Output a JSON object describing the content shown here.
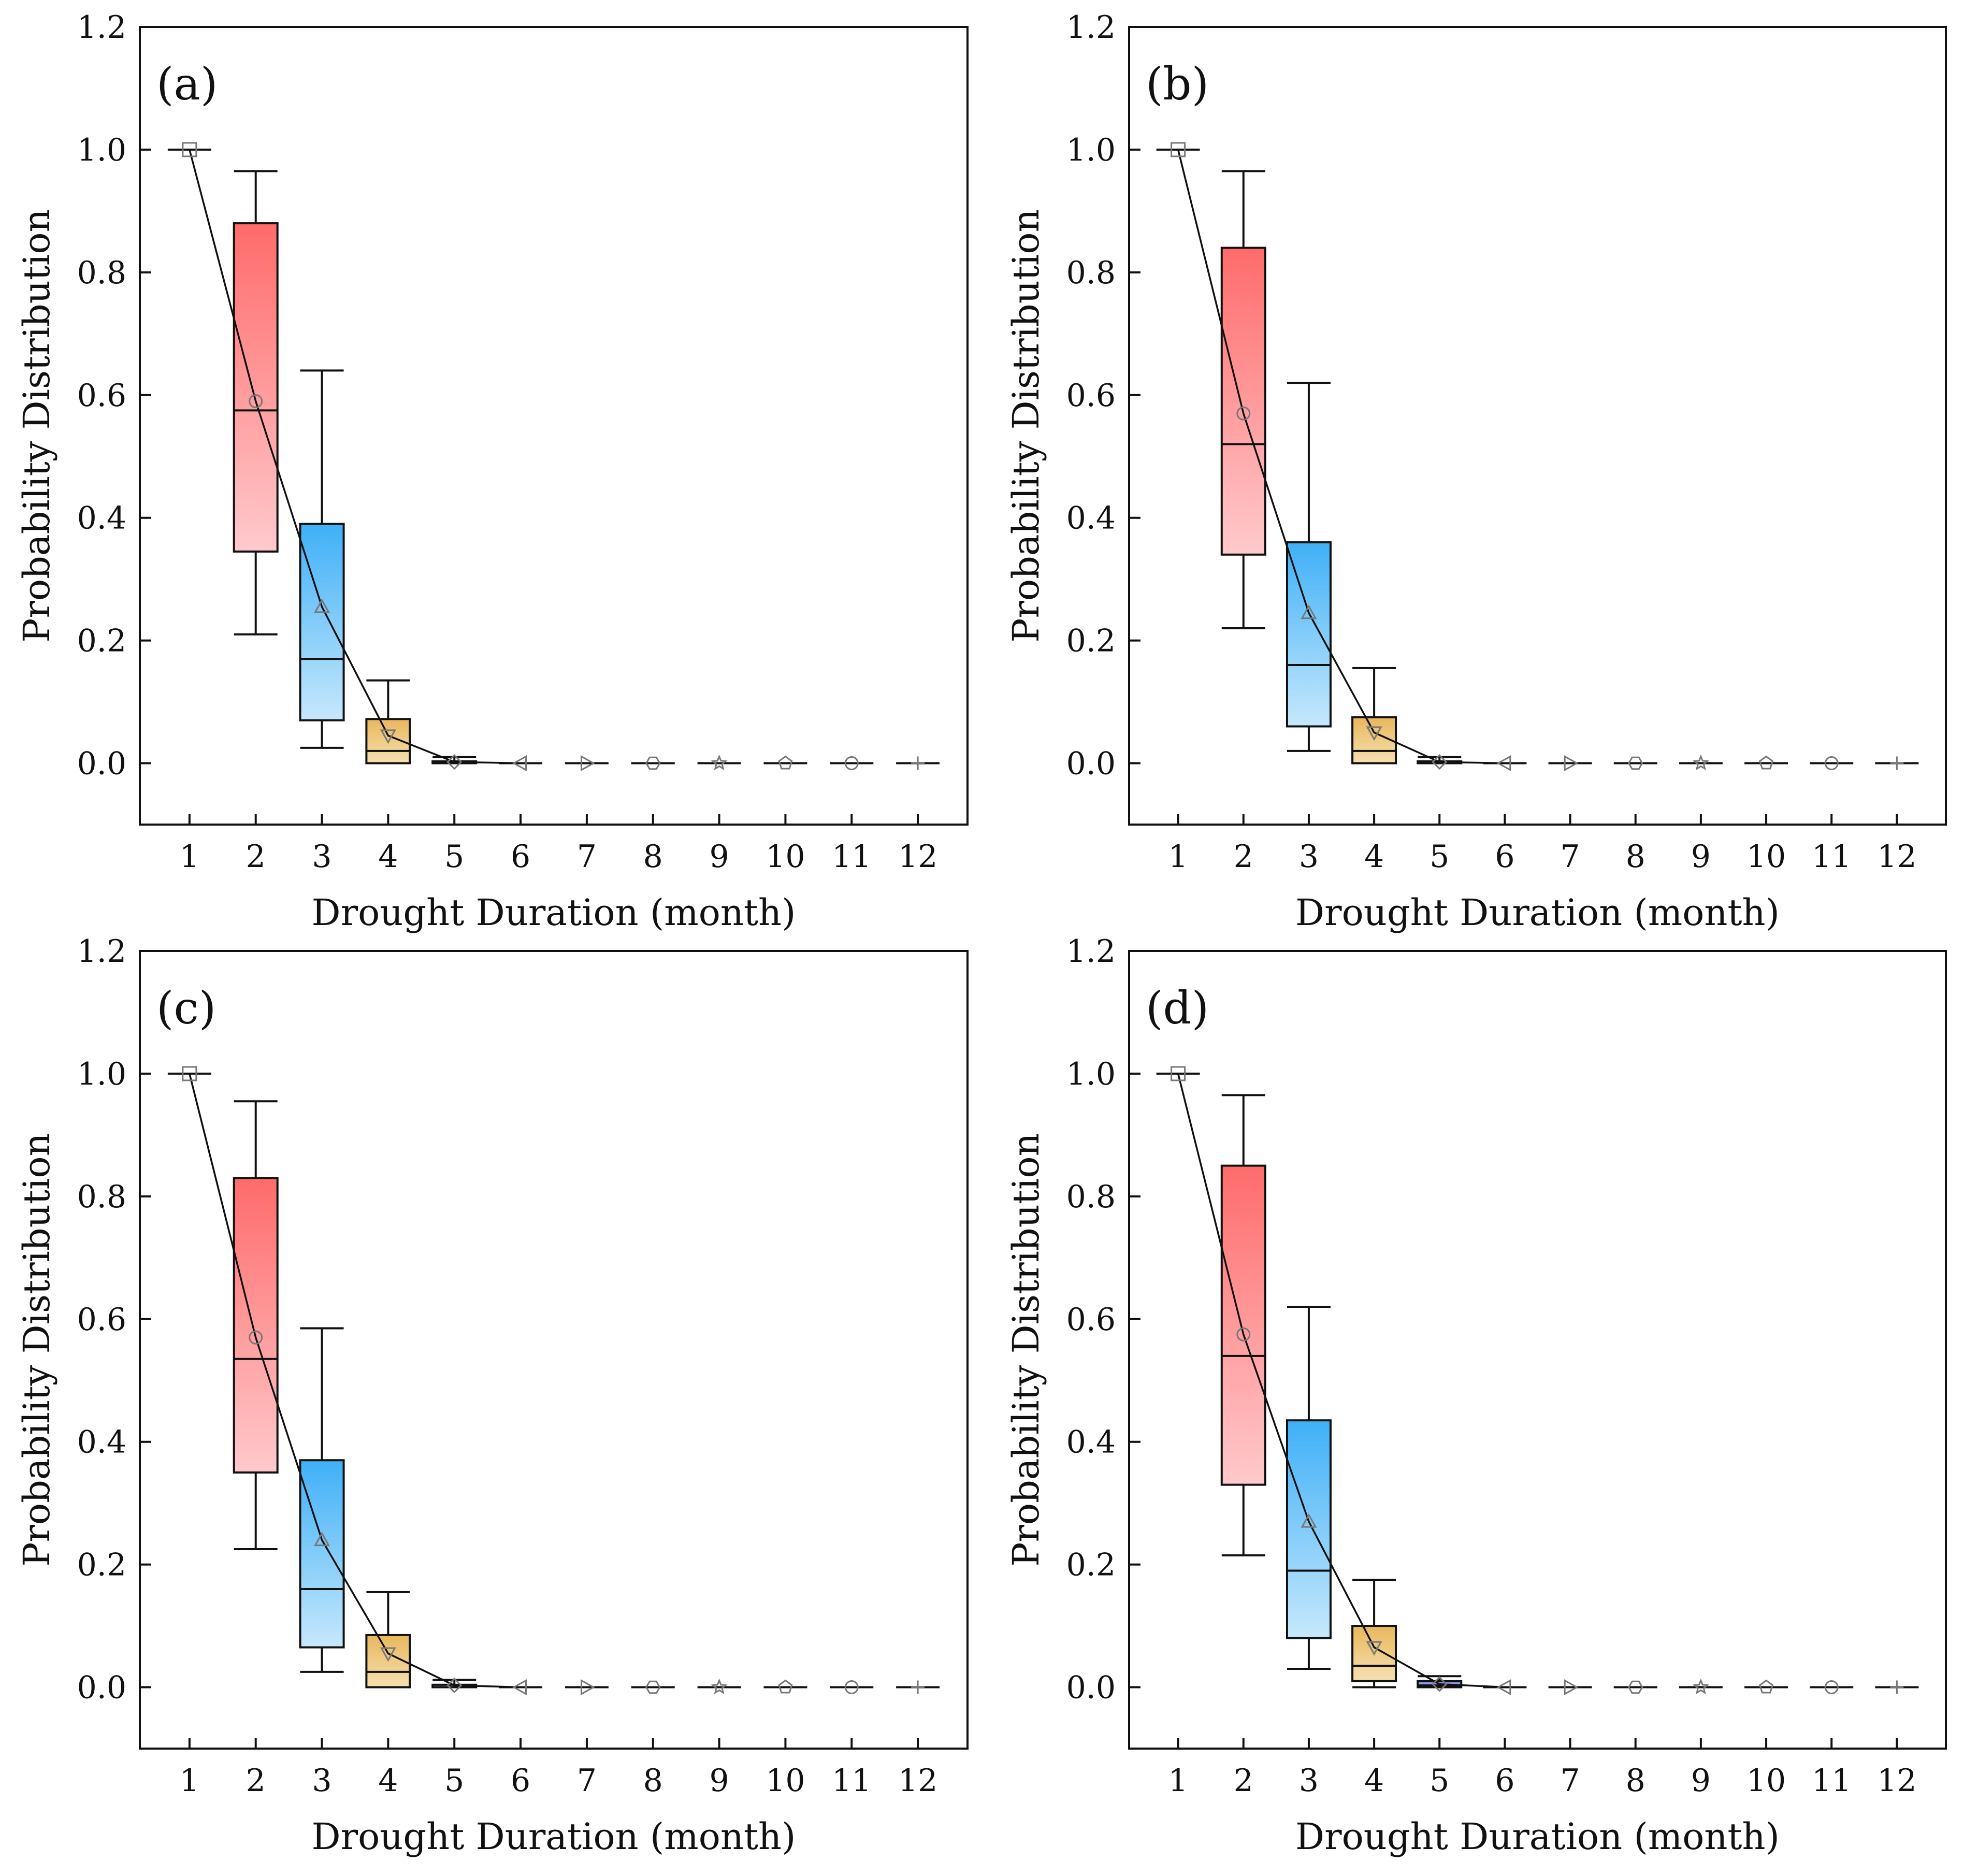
{
  "chart_data": [
    {
      "type": "box",
      "panel_label": "(a)",
      "xlabel": "Drought Duration (month)",
      "ylabel": "Probability Distribution",
      "x_ticks": [
        "1",
        "2",
        "3",
        "4",
        "5",
        "6",
        "7",
        "8",
        "9",
        "10",
        "11",
        "12"
      ],
      "y_ticks": [
        "0.0",
        "0.2",
        "0.4",
        "0.6",
        "0.8",
        "1.0",
        "1.2"
      ],
      "ylim": [
        -0.1,
        1.2
      ],
      "boxes": [
        {
          "x": 1,
          "min": 1.0,
          "q1": 1.0,
          "median": 1.0,
          "q3": 1.0,
          "max": 1.0,
          "mean": 1.0
        },
        {
          "x": 2,
          "min": 0.21,
          "q1": 0.345,
          "median": 0.575,
          "q3": 0.88,
          "max": 0.965,
          "mean": 0.59
        },
        {
          "x": 3,
          "min": 0.025,
          "q1": 0.07,
          "median": 0.17,
          "q3": 0.39,
          "max": 0.64,
          "mean": 0.255
        },
        {
          "x": 4,
          "min": 0.0,
          "q1": 0.0,
          "median": 0.02,
          "q3": 0.072,
          "max": 0.135,
          "mean": 0.045
        },
        {
          "x": 5,
          "min": 0.0,
          "q1": 0.0,
          "median": 0.0,
          "q3": 0.003,
          "max": 0.01,
          "mean": 0.002
        },
        {
          "x": 6,
          "min": 0.0,
          "q1": 0.0,
          "median": 0.0,
          "q3": 0.0,
          "max": 0.0,
          "mean": 0.0
        },
        {
          "x": 7,
          "min": 0.0,
          "q1": 0.0,
          "median": 0.0,
          "q3": 0.0,
          "max": 0.0,
          "mean": 0.0
        },
        {
          "x": 8,
          "min": 0.0,
          "q1": 0.0,
          "median": 0.0,
          "q3": 0.0,
          "max": 0.0,
          "mean": 0.0
        },
        {
          "x": 9,
          "min": 0.0,
          "q1": 0.0,
          "median": 0.0,
          "q3": 0.0,
          "max": 0.0,
          "mean": 0.0
        },
        {
          "x": 10,
          "min": 0.0,
          "q1": 0.0,
          "median": 0.0,
          "q3": 0.0,
          "max": 0.0,
          "mean": 0.0
        },
        {
          "x": 11,
          "min": 0.0,
          "q1": 0.0,
          "median": 0.0,
          "q3": 0.0,
          "max": 0.0,
          "mean": 0.0
        },
        {
          "x": 12,
          "min": 0.0,
          "q1": 0.0,
          "median": 0.0,
          "q3": 0.0,
          "max": 0.0,
          "mean": 0.0
        }
      ]
    },
    {
      "type": "box",
      "panel_label": "(b)",
      "xlabel": "Drought Duration (month)",
      "ylabel": "Probability Distribution",
      "x_ticks": [
        "1",
        "2",
        "3",
        "4",
        "5",
        "6",
        "7",
        "8",
        "9",
        "10",
        "11",
        "12"
      ],
      "y_ticks": [
        "0.0",
        "0.2",
        "0.4",
        "0.6",
        "0.8",
        "1.0",
        "1.2"
      ],
      "ylim": [
        -0.1,
        1.2
      ],
      "boxes": [
        {
          "x": 1,
          "min": 1.0,
          "q1": 1.0,
          "median": 1.0,
          "q3": 1.0,
          "max": 1.0,
          "mean": 1.0
        },
        {
          "x": 2,
          "min": 0.22,
          "q1": 0.34,
          "median": 0.52,
          "q3": 0.84,
          "max": 0.965,
          "mean": 0.57
        },
        {
          "x": 3,
          "min": 0.02,
          "q1": 0.06,
          "median": 0.16,
          "q3": 0.36,
          "max": 0.62,
          "mean": 0.245
        },
        {
          "x": 4,
          "min": 0.0,
          "q1": 0.0,
          "median": 0.02,
          "q3": 0.075,
          "max": 0.155,
          "mean": 0.05
        },
        {
          "x": 5,
          "min": 0.0,
          "q1": 0.0,
          "median": 0.0,
          "q3": 0.003,
          "max": 0.01,
          "mean": 0.002
        },
        {
          "x": 6,
          "min": 0.0,
          "q1": 0.0,
          "median": 0.0,
          "q3": 0.0,
          "max": 0.0,
          "mean": 0.0
        },
        {
          "x": 7,
          "min": 0.0,
          "q1": 0.0,
          "median": 0.0,
          "q3": 0.0,
          "max": 0.0,
          "mean": 0.0
        },
        {
          "x": 8,
          "min": 0.0,
          "q1": 0.0,
          "median": 0.0,
          "q3": 0.0,
          "max": 0.0,
          "mean": 0.0
        },
        {
          "x": 9,
          "min": 0.0,
          "q1": 0.0,
          "median": 0.0,
          "q3": 0.0,
          "max": 0.0,
          "mean": 0.0
        },
        {
          "x": 10,
          "min": 0.0,
          "q1": 0.0,
          "median": 0.0,
          "q3": 0.0,
          "max": 0.0,
          "mean": 0.0
        },
        {
          "x": 11,
          "min": 0.0,
          "q1": 0.0,
          "median": 0.0,
          "q3": 0.0,
          "max": 0.0,
          "mean": 0.0
        },
        {
          "x": 12,
          "min": 0.0,
          "q1": 0.0,
          "median": 0.0,
          "q3": 0.0,
          "max": 0.0,
          "mean": 0.0
        }
      ]
    },
    {
      "type": "box",
      "panel_label": "(c)",
      "xlabel": "Drought Duration (month)",
      "ylabel": "Probability Distribution",
      "x_ticks": [
        "1",
        "2",
        "3",
        "4",
        "5",
        "6",
        "7",
        "8",
        "9",
        "10",
        "11",
        "12"
      ],
      "y_ticks": [
        "0.0",
        "0.2",
        "0.4",
        "0.6",
        "0.8",
        "1.0",
        "1.2"
      ],
      "ylim": [
        -0.1,
        1.2
      ],
      "boxes": [
        {
          "x": 1,
          "min": 1.0,
          "q1": 1.0,
          "median": 1.0,
          "q3": 1.0,
          "max": 1.0,
          "mean": 1.0
        },
        {
          "x": 2,
          "min": 0.225,
          "q1": 0.35,
          "median": 0.535,
          "q3": 0.83,
          "max": 0.955,
          "mean": 0.57
        },
        {
          "x": 3,
          "min": 0.025,
          "q1": 0.065,
          "median": 0.16,
          "q3": 0.37,
          "max": 0.585,
          "mean": 0.24
        },
        {
          "x": 4,
          "min": 0.0,
          "q1": 0.0,
          "median": 0.025,
          "q3": 0.085,
          "max": 0.155,
          "mean": 0.055
        },
        {
          "x": 5,
          "min": 0.0,
          "q1": 0.0,
          "median": 0.0,
          "q3": 0.004,
          "max": 0.012,
          "mean": 0.003
        },
        {
          "x": 6,
          "min": 0.0,
          "q1": 0.0,
          "median": 0.0,
          "q3": 0.0,
          "max": 0.0,
          "mean": 0.0
        },
        {
          "x": 7,
          "min": 0.0,
          "q1": 0.0,
          "median": 0.0,
          "q3": 0.0,
          "max": 0.0,
          "mean": 0.0
        },
        {
          "x": 8,
          "min": 0.0,
          "q1": 0.0,
          "median": 0.0,
          "q3": 0.0,
          "max": 0.0,
          "mean": 0.0
        },
        {
          "x": 9,
          "min": 0.0,
          "q1": 0.0,
          "median": 0.0,
          "q3": 0.0,
          "max": 0.0,
          "mean": 0.0
        },
        {
          "x": 10,
          "min": 0.0,
          "q1": 0.0,
          "median": 0.0,
          "q3": 0.0,
          "max": 0.0,
          "mean": 0.0
        },
        {
          "x": 11,
          "min": 0.0,
          "q1": 0.0,
          "median": 0.0,
          "q3": 0.0,
          "max": 0.0,
          "mean": 0.0
        },
        {
          "x": 12,
          "min": 0.0,
          "q1": 0.0,
          "median": 0.0,
          "q3": 0.0,
          "max": 0.0,
          "mean": 0.0
        }
      ]
    },
    {
      "type": "box",
      "panel_label": "(d)",
      "xlabel": "Drought Duration (month)",
      "ylabel": "Probability Distribution",
      "x_ticks": [
        "1",
        "2",
        "3",
        "4",
        "5",
        "6",
        "7",
        "8",
        "9",
        "10",
        "11",
        "12"
      ],
      "y_ticks": [
        "0.0",
        "0.2",
        "0.4",
        "0.6",
        "0.8",
        "1.0",
        "1.2"
      ],
      "ylim": [
        -0.1,
        1.2
      ],
      "boxes": [
        {
          "x": 1,
          "min": 1.0,
          "q1": 1.0,
          "median": 1.0,
          "q3": 1.0,
          "max": 1.0,
          "mean": 1.0
        },
        {
          "x": 2,
          "min": 0.215,
          "q1": 0.33,
          "median": 0.54,
          "q3": 0.85,
          "max": 0.965,
          "mean": 0.575
        },
        {
          "x": 3,
          "min": 0.03,
          "q1": 0.08,
          "median": 0.19,
          "q3": 0.435,
          "max": 0.62,
          "mean": 0.27
        },
        {
          "x": 4,
          "min": 0.0,
          "q1": 0.01,
          "median": 0.035,
          "q3": 0.1,
          "max": 0.175,
          "mean": 0.065
        },
        {
          "x": 5,
          "min": 0.0,
          "q1": 0.0,
          "median": 0.003,
          "q3": 0.01,
          "max": 0.018,
          "mean": 0.005
        },
        {
          "x": 6,
          "min": 0.0,
          "q1": 0.0,
          "median": 0.0,
          "q3": 0.0,
          "max": 0.0,
          "mean": 0.0
        },
        {
          "x": 7,
          "min": 0.0,
          "q1": 0.0,
          "median": 0.0,
          "q3": 0.0,
          "max": 0.0,
          "mean": 0.0
        },
        {
          "x": 8,
          "min": 0.0,
          "q1": 0.0,
          "median": 0.0,
          "q3": 0.0,
          "max": 0.0,
          "mean": 0.0
        },
        {
          "x": 9,
          "min": 0.0,
          "q1": 0.0,
          "median": 0.0,
          "q3": 0.0,
          "max": 0.0,
          "mean": 0.0
        },
        {
          "x": 10,
          "min": 0.0,
          "q1": 0.0,
          "median": 0.0,
          "q3": 0.0,
          "max": 0.0,
          "mean": 0.0
        },
        {
          "x": 11,
          "min": 0.0,
          "q1": 0.0,
          "median": 0.0,
          "q3": 0.0,
          "max": 0.0,
          "mean": 0.0
        },
        {
          "x": 12,
          "min": 0.0,
          "q1": 0.0,
          "median": 0.0,
          "q3": 0.0,
          "max": 0.0,
          "mean": 0.0
        }
      ]
    }
  ],
  "mean_markers": [
    "square",
    "circle",
    "triangle-up",
    "triangle-down",
    "diamond",
    "triangle-left",
    "triangle-right",
    "hexagon",
    "star",
    "pentagon",
    "circle",
    "plus"
  ],
  "colors": {
    "month2_top": "#ff6b6b",
    "month2_bottom": "#ffc9cc",
    "month3_top": "#3fb0f7",
    "month3_bottom": "#c6e8fc",
    "month4_top": "#e8b75c",
    "month4_bottom": "#f6e0b0",
    "month5_top": "#6f86e0",
    "month5_bottom": "#b9c6f5"
  }
}
